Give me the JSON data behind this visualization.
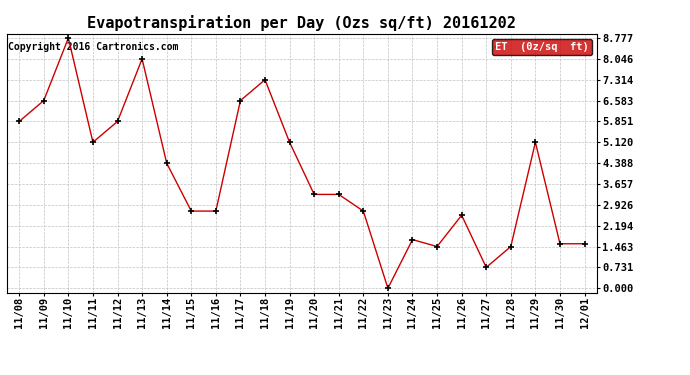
{
  "title": "Evapotranspiration per Day (Ozs sq/ft) 20161202",
  "copyright": "Copyright 2016 Cartronics.com",
  "legend_label": "ET  (0z/sq  ft)",
  "x_labels": [
    "11/08",
    "11/09",
    "11/10",
    "11/11",
    "11/12",
    "11/13",
    "11/14",
    "11/15",
    "11/16",
    "11/17",
    "11/18",
    "11/19",
    "11/20",
    "11/21",
    "11/22",
    "11/23",
    "11/24",
    "11/25",
    "11/26",
    "11/27",
    "11/28",
    "11/29",
    "11/30",
    "12/01"
  ],
  "y_values": [
    5.851,
    6.583,
    8.777,
    5.12,
    5.851,
    8.046,
    4.388,
    2.706,
    2.706,
    6.583,
    7.314,
    5.12,
    3.291,
    3.291,
    2.706,
    0.0,
    1.706,
    1.463,
    2.56,
    0.731,
    1.463,
    5.12,
    1.56,
    1.56
  ],
  "line_color": "#cc0000",
  "marker_color": "#000000",
  "background_color": "#ffffff",
  "grid_color": "#bbbbbb",
  "y_ticks": [
    0.0,
    0.731,
    1.463,
    2.194,
    2.926,
    3.657,
    4.388,
    5.12,
    5.851,
    6.583,
    7.314,
    8.046,
    8.777
  ],
  "ylim": [
    0.0,
    8.777
  ],
  "title_fontsize": 11,
  "copyright_fontsize": 7,
  "tick_fontsize": 7.5,
  "legend_bg": "#cc0000",
  "legend_text_color": "#ffffff",
  "legend_fontsize": 7.5
}
